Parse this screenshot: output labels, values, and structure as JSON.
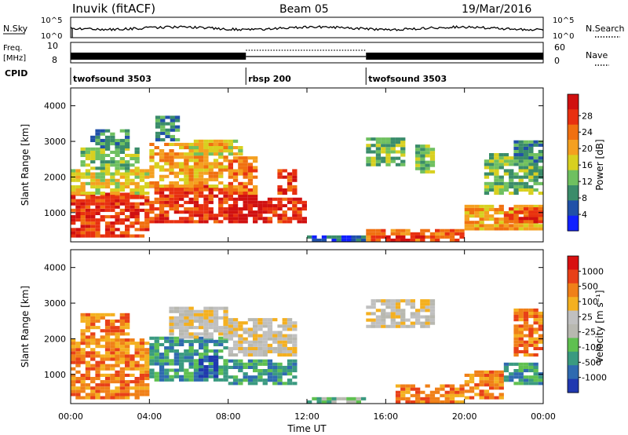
{
  "header": {
    "station": "Inuvik (fitACF)",
    "beam": "Beam 05",
    "date": "19/Mar/2016"
  },
  "nsky_panel": {
    "left_label": "N.Sky",
    "right_label": "N.Search",
    "left_ticks": [
      "10^5",
      "10^0"
    ],
    "right_ticks": [
      "10^5",
      "10^0"
    ]
  },
  "freq_panel": {
    "left_label_1": "Freq.",
    "left_label_2": "[MHz]",
    "right_label": "Nave",
    "left_ticks": [
      "10",
      "8"
    ],
    "right_ticks": [
      "60",
      "0"
    ]
  },
  "cpid_panel": {
    "label": "CPID",
    "segments": [
      {
        "name": "twofsound 3503",
        "start_hour": 0,
        "end_hour": 8.9
      },
      {
        "name": "rbsp 200",
        "start_hour": 8.9,
        "end_hour": 15.0
      },
      {
        "name": "twofsound 3503",
        "start_hour": 15.0,
        "end_hour": 24
      }
    ]
  },
  "x_axis": {
    "label": "Time UT",
    "ticks": [
      "00:00",
      "04:00",
      "08:00",
      "12:00",
      "16:00",
      "20:00",
      "00:00"
    ]
  },
  "chart_data": [
    {
      "type": "heatmap",
      "name": "power",
      "ylabel": "Slant Range [km]",
      "yticks": [
        "1000",
        "2000",
        "3000",
        "4000"
      ],
      "ylim": [
        180,
        4500
      ],
      "xlim_hours": [
        0,
        24
      ],
      "colorbar_label": "Power [dB]",
      "colorbar_ticks": [
        "4",
        "8",
        "12",
        "16",
        "20",
        "24",
        "28"
      ],
      "colorbar_colors": [
        "#1020ff",
        "#2050a8",
        "#3a8c6a",
        "#6fc060",
        "#d8d020",
        "#f4a020",
        "#f07010",
        "#e83010",
        "#d01010"
      ],
      "regions": [
        {
          "h0": 0.0,
          "h1": 4.0,
          "r0": 300,
          "r1": 1500,
          "c": 7
        },
        {
          "h0": 0.0,
          "h1": 4.0,
          "r0": 1500,
          "r1": 2200,
          "c": 4
        },
        {
          "h0": 0.5,
          "h1": 3.5,
          "r0": 2200,
          "r1": 2800,
          "c": 3
        },
        {
          "h0": 1.0,
          "h1": 3.0,
          "r0": 2800,
          "r1": 3300,
          "c": 2
        },
        {
          "h0": 4.0,
          "h1": 8.0,
          "r0": 700,
          "r1": 1700,
          "c": 7
        },
        {
          "h0": 4.0,
          "h1": 8.0,
          "r0": 1700,
          "r1": 2900,
          "c": 5
        },
        {
          "h0": 4.3,
          "h1": 5.5,
          "r0": 3000,
          "r1": 3700,
          "c": 2
        },
        {
          "h0": 6.0,
          "h1": 8.6,
          "r0": 2600,
          "r1": 3000,
          "c": 4
        },
        {
          "h0": 8.0,
          "h1": 10.0,
          "r0": 700,
          "r1": 1500,
          "c": 8
        },
        {
          "h0": 8.0,
          "h1": 9.5,
          "r0": 1500,
          "r1": 2500,
          "c": 6
        },
        {
          "h0": 10.0,
          "h1": 12.0,
          "r0": 700,
          "r1": 1400,
          "c": 7
        },
        {
          "h0": 10.5,
          "h1": 11.5,
          "r0": 1500,
          "r1": 2200,
          "c": 7
        },
        {
          "h0": 12.0,
          "h1": 15.0,
          "r0": 180,
          "r1": 350,
          "c": 1
        },
        {
          "h0": 15.0,
          "h1": 17.0,
          "r0": 2300,
          "r1": 3100,
          "c": 3
        },
        {
          "h0": 17.5,
          "h1": 18.5,
          "r0": 2100,
          "r1": 2900,
          "c": 3
        },
        {
          "h0": 15.0,
          "h1": 20.0,
          "r0": 180,
          "r1": 500,
          "c": 6
        },
        {
          "h0": 16.0,
          "h1": 18.0,
          "r0": 180,
          "r1": 350,
          "c": 8
        },
        {
          "h0": 20.0,
          "h1": 24.0,
          "r0": 500,
          "r1": 1200,
          "c": 5
        },
        {
          "h0": 22.0,
          "h1": 24.0,
          "r0": 700,
          "r1": 1100,
          "c": 7
        },
        {
          "h0": 21.0,
          "h1": 24.0,
          "r0": 1500,
          "r1": 2600,
          "c": 3
        },
        {
          "h0": 22.5,
          "h1": 24.0,
          "r0": 2400,
          "r1": 3000,
          "c": 2
        }
      ]
    },
    {
      "type": "heatmap",
      "name": "velocity",
      "ylabel": "Slant Range [km]",
      "yticks": [
        "1000",
        "2000",
        "3000",
        "4000"
      ],
      "ylim": [
        180,
        4500
      ],
      "xlim_hours": [
        0,
        24
      ],
      "colorbar_label": "Velocity [m s⁻¹]",
      "colorbar_ticks": [
        "1000",
        "500",
        "100",
        "25",
        "-25",
        "-100",
        "-500",
        "-1000"
      ],
      "colorbar_colors": [
        "#2038b0",
        "#2f6ab0",
        "#3a9a80",
        "#5fc050",
        "#b8b8b0",
        "#c0c0c0",
        "#f4b020",
        "#f08018",
        "#e84018",
        "#d81010"
      ],
      "regions": [
        {
          "h0": 0.0,
          "h1": 4.0,
          "r0": 300,
          "r1": 2000,
          "c": 7
        },
        {
          "h0": 0.5,
          "h1": 3.0,
          "r0": 2000,
          "r1": 2700,
          "c": 7
        },
        {
          "h0": 4.0,
          "h1": 8.0,
          "r0": 800,
          "r1": 2000,
          "c": 2
        },
        {
          "h0": 5.0,
          "h1": 8.0,
          "r0": 2000,
          "r1": 2900,
          "c": 5
        },
        {
          "h0": 6.5,
          "h1": 7.5,
          "r0": 900,
          "r1": 1500,
          "c": 0
        },
        {
          "h0": 8.0,
          "h1": 11.5,
          "r0": 700,
          "r1": 1400,
          "c": 2
        },
        {
          "h0": 8.0,
          "h1": 11.5,
          "r0": 1500,
          "r1": 2500,
          "c": 5
        },
        {
          "h0": 12.0,
          "h1": 15.0,
          "r0": 180,
          "r1": 350,
          "c": 3
        },
        {
          "h0": 15.0,
          "h1": 18.5,
          "r0": 2300,
          "r1": 3100,
          "c": 5
        },
        {
          "h0": 16.5,
          "h1": 20.0,
          "r0": 180,
          "r1": 700,
          "c": 7
        },
        {
          "h0": 20.0,
          "h1": 22.0,
          "r0": 300,
          "r1": 1100,
          "c": 7
        },
        {
          "h0": 22.0,
          "h1": 24.0,
          "r0": 700,
          "r1": 1300,
          "c": 2
        },
        {
          "h0": 22.5,
          "h1": 24.0,
          "r0": 1500,
          "r1": 2800,
          "c": 7
        }
      ]
    }
  ]
}
